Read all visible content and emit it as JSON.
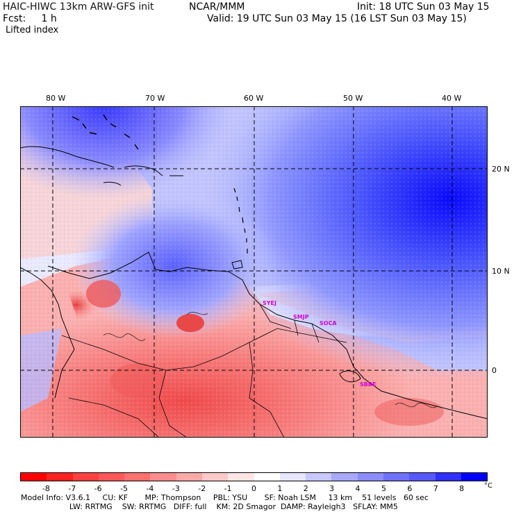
{
  "header": {
    "model_title": "HAIC-HIWC 13km ARW-GFS init",
    "org": "NCAR/MMM",
    "init": "Init: 18 UTC Sun 03 May 15",
    "fcst": "Fcst:     1 h",
    "valid": "Valid: 19 UTC Sun 03 May 15 (16 LST Sun 03 May 15)",
    "field": "Lifted index"
  },
  "map": {
    "longitude_labels": [
      "80 W",
      "70 W",
      "60 W",
      "50 W",
      "40 W"
    ],
    "latitude_labels": [
      "20 N",
      "10 N",
      "0"
    ],
    "longitudes": [
      -80,
      -70,
      -60,
      -50,
      -40
    ],
    "latitudes": [
      20,
      10,
      0
    ],
    "extent": {
      "lon_min": -83.1,
      "lon_max": -35.7,
      "lat_min": -6.6,
      "lat_max": 26.3
    },
    "stations": [
      {
        "label": "SYEJ",
        "lon": -58.0,
        "lat": 6.5
      },
      {
        "label": "SMJP",
        "lon": -55.2,
        "lat": 5.4
      },
      {
        "label": "SOCA",
        "lon": -52.4,
        "lat": 4.8
      },
      {
        "label": "SBBE",
        "lon": -48.5,
        "lat": -1.4
      }
    ],
    "gridline_color": "#000000",
    "coast_color": "#000000"
  },
  "colorbar": {
    "ticks": [
      "-8",
      "-7",
      "-6",
      "-5",
      "-4",
      "-3",
      "-2",
      "-1",
      "0",
      "1",
      "2",
      "3",
      "4",
      "5",
      "6",
      "7",
      "8"
    ],
    "unit": "°C",
    "colors": [
      "#ff0000",
      "#ff2020",
      "#ff4040",
      "#ff5858",
      "#ff7070",
      "#ff8c8c",
      "#ffa8a8",
      "#ffc8c8",
      "#ffe6e6",
      "#ffffff",
      "#e6e6ff",
      "#c8c8ff",
      "#a8a8ff",
      "#8c8cff",
      "#7070ff",
      "#5858ff",
      "#3030ff",
      "#0000ff"
    ]
  },
  "model_info": {
    "line1": "Model Info: V3.6.1     CU: KF       MP: Thompson     PBL: YSU       SF: Noah LSM     13 km    51 levels   60 sec",
    "line2": "                    LW: RRTMG    SW: RRTMG   DIFF: full    KM: 2D Smagor  DAMP: Rayleigh3   SFLAY: MM5"
  }
}
